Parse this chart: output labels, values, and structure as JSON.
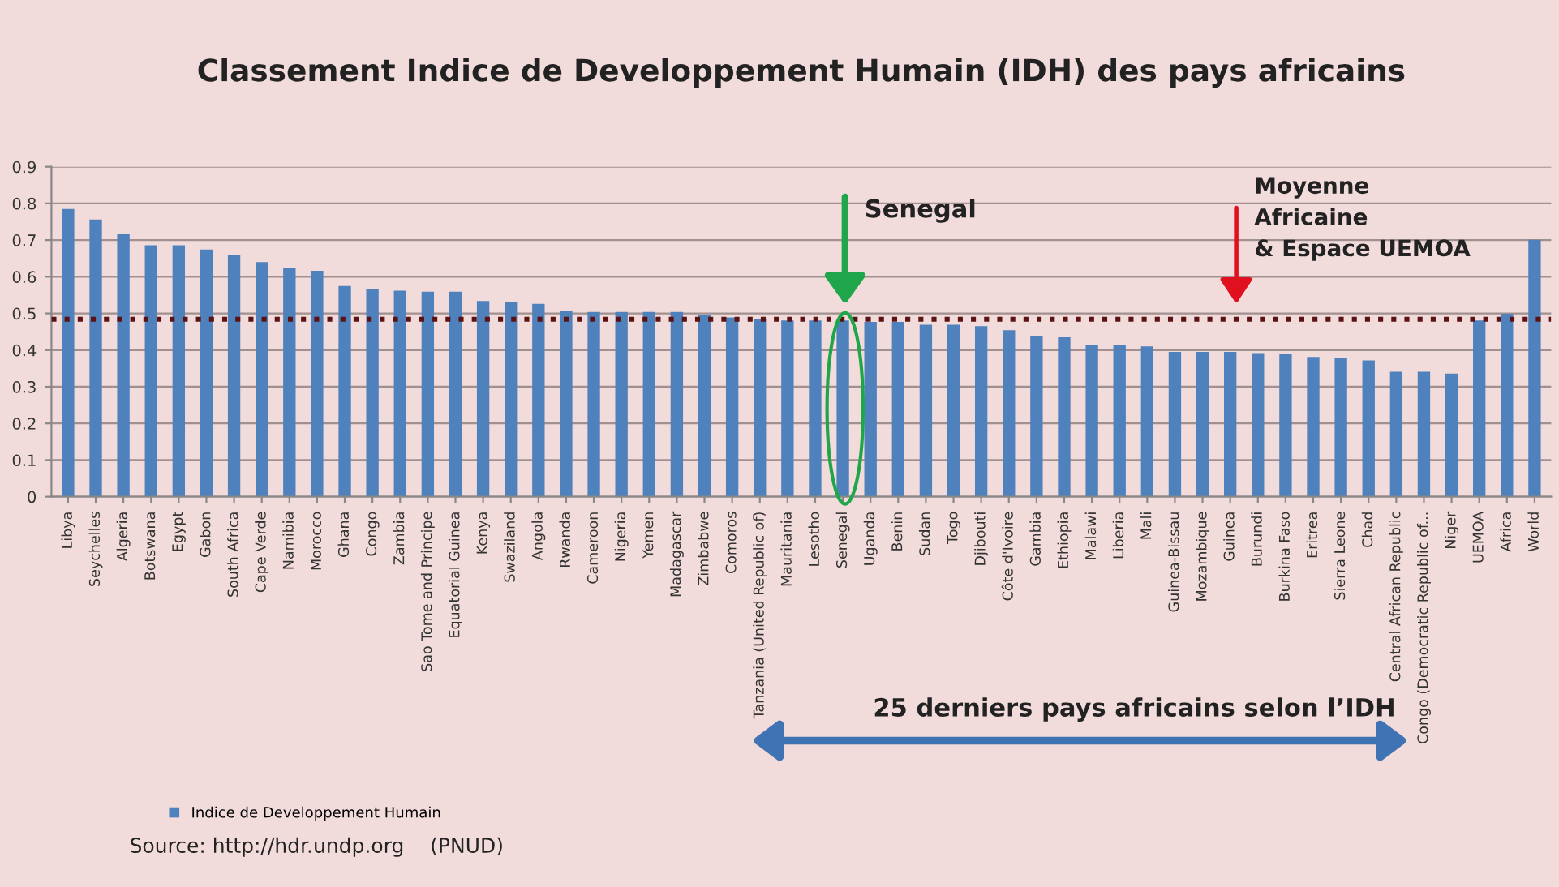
{
  "chart_data": {
    "type": "bar",
    "title": "Classement Indice de Developpement Humain (IDH) des pays africains",
    "categories": [
      "Libya",
      "Seychelles",
      "Algeria",
      "Botswana",
      "Egypt",
      "Gabon",
      "South Africa",
      "Cape Verde",
      "Namibia",
      "Morocco",
      "Ghana",
      "Congo",
      "Zambia",
      "Sao Tome and Principe",
      "Equatorial Guinea",
      "Kenya",
      "Swaziland",
      "Angola",
      "Rwanda",
      "Cameroon",
      "Nigeria",
      "Yemen",
      "Madagascar",
      "Zimbabwe",
      "Comoros",
      "Tanzania (United Republic of)",
      "Mauritania",
      "Lesotho",
      "Senegal",
      "Uganda",
      "Benin",
      "Sudan",
      "Togo",
      "Djibouti",
      "Côte d'Ivoire",
      "Gambia",
      "Ethiopia",
      "Malawi",
      "Liberia",
      "Mali",
      "Guinea-Bissau",
      "Mozambique",
      "Guinea",
      "Burundi",
      "Burkina Faso",
      "Eritrea",
      "Sierra Leone",
      "Chad",
      "Central African Republic",
      "Congo (Democratic Republic of...",
      "Niger",
      "UEMOA",
      "Africa",
      "World"
    ],
    "series": [
      {
        "name": "Indice de Developpement Humain",
        "color": "#4f81bd",
        "values": [
          0.785,
          0.756,
          0.716,
          0.686,
          0.686,
          0.674,
          0.658,
          0.64,
          0.625,
          0.616,
          0.575,
          0.567,
          0.562,
          0.559,
          0.559,
          0.534,
          0.531,
          0.526,
          0.508,
          0.504,
          0.504,
          0.504,
          0.504,
          0.496,
          0.489,
          0.486,
          0.481,
          0.481,
          0.481,
          0.477,
          0.477,
          0.469,
          0.469,
          0.465,
          0.454,
          0.439,
          0.435,
          0.414,
          0.414,
          0.41,
          0.395,
          0.395,
          0.395,
          0.392,
          0.39,
          0.381,
          0.378,
          0.372,
          0.341,
          0.341,
          0.336,
          0.481,
          0.499,
          0.701
        ]
      }
    ],
    "ylim": [
      0,
      0.9
    ],
    "yticks": [
      {
        "value": 0,
        "label": "0"
      },
      0.1,
      0.2,
      0.3,
      0.4,
      0.5,
      0.6,
      0.7,
      0.8,
      0.9
    ],
    "grid": "y",
    "legend": "bottom left",
    "ref_lines": [
      {
        "axis": "y",
        "value": 0.484,
        "label": null,
        "color": "#5a1212",
        "line_style": "dotted"
      }
    ],
    "annotations": [
      "Senegal",
      {
        "text": "Moyenne\nAfricaine\n& Espace UEMOA",
        "y": 0.484
      },
      "25 derniers pays africains selon l’IDH",
      "Source: http://hdr.undp.org    (PNUD)"
    ]
  }
}
